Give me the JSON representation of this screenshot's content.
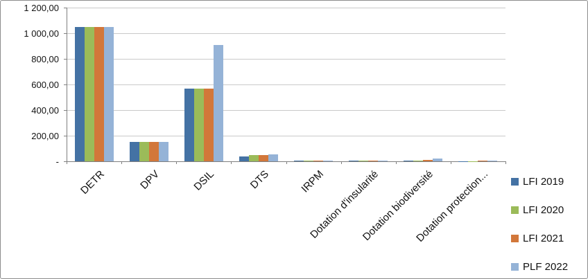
{
  "chart_data": {
    "type": "bar",
    "title": "",
    "xlabel": "",
    "ylabel": "",
    "categories": [
      "DETR",
      "DPV",
      "DSIL",
      "DTS",
      "IRPM",
      "Dotation d'insularité",
      "Dotation biodiversité",
      "Dotation protection..."
    ],
    "series": [
      {
        "name": "LFI 2019",
        "color": "#4472a4",
        "values": [
          1046,
          150,
          570,
          40,
          3,
          4,
          5,
          2
        ]
      },
      {
        "name": "LFI 2020",
        "color": "#9bbb59",
        "values": [
          1046,
          150,
          570,
          46,
          3,
          4,
          5,
          2
        ]
      },
      {
        "name": "LFI 2021",
        "color": "#d2773a",
        "values": [
          1046,
          150,
          570,
          46,
          3,
          4,
          10,
          3
        ]
      },
      {
        "name": "PLF 2022",
        "color": "#95b3d7",
        "values": [
          1046,
          150,
          907,
          52,
          3,
          4,
          24,
          3
        ]
      }
    ],
    "ylim": [
      0,
      1200
    ],
    "ytick_step": 200,
    "ytick_labels": [
      "-",
      "200,00",
      "400,00",
      "600,00",
      "800,00",
      "1 000,00",
      "1 200,00"
    ],
    "grid": true,
    "legend_position": "right-bottom"
  }
}
